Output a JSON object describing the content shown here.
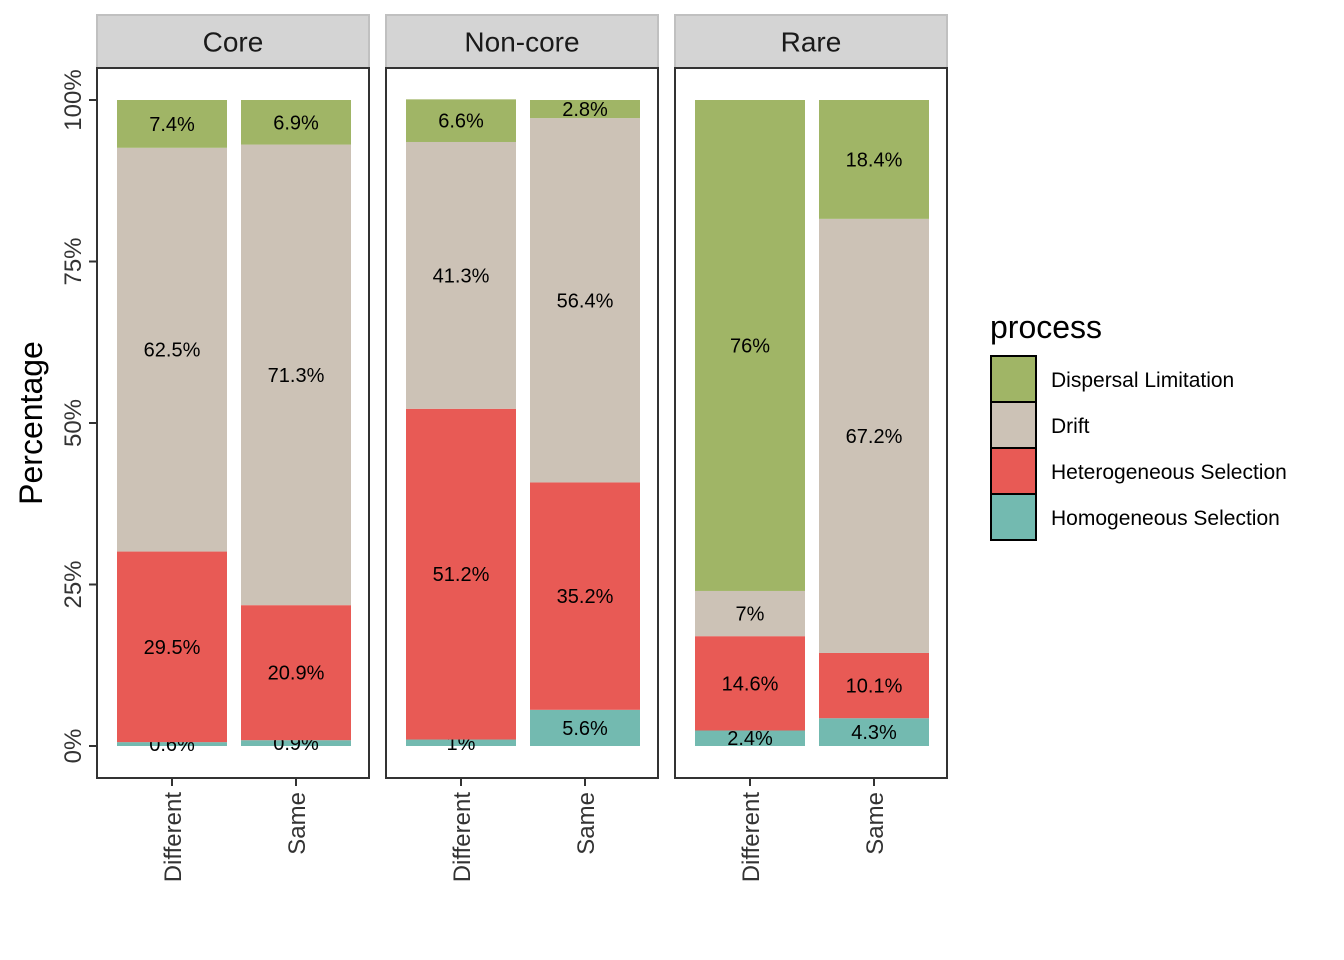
{
  "chart_data": {
    "type": "bar",
    "stacked": true,
    "ylabel": "Percentage",
    "xlabel": "",
    "ylim": [
      0,
      100
    ],
    "y_ticks": [
      "0%",
      "25%",
      "50%",
      "75%",
      "100%"
    ],
    "categories": [
      "Different",
      "Same"
    ],
    "facets": [
      {
        "name": "Core",
        "bars": [
          {
            "category": "Different",
            "values": {
              "Homogeneous Selection": 0.6,
              "Heterogeneous Selection": 29.5,
              "Drift": 62.5,
              "Dispersal Limitation": 7.4
            }
          },
          {
            "category": "Same",
            "values": {
              "Homogeneous Selection": 0.9,
              "Heterogeneous Selection": 20.9,
              "Drift": 71.3,
              "Dispersal Limitation": 6.9
            }
          }
        ]
      },
      {
        "name": "Non-core",
        "bars": [
          {
            "category": "Different",
            "values": {
              "Homogeneous Selection": 1,
              "Heterogeneous Selection": 51.2,
              "Drift": 41.3,
              "Dispersal Limitation": 6.6
            }
          },
          {
            "category": "Same",
            "values": {
              "Homogeneous Selection": 5.6,
              "Heterogeneous Selection": 35.2,
              "Drift": 56.4,
              "Dispersal Limitation": 2.8
            }
          }
        ]
      },
      {
        "name": "Rare",
        "bars": [
          {
            "category": "Different",
            "values": {
              "Homogeneous Selection": 2.4,
              "Heterogeneous Selection": 14.6,
              "Drift": 7,
              "Dispersal Limitation": 76
            }
          },
          {
            "category": "Same",
            "values": {
              "Homogeneous Selection": 4.3,
              "Heterogeneous Selection": 10.1,
              "Drift": 67.2,
              "Dispersal Limitation": 18.4
            }
          }
        ]
      }
    ],
    "stack_order": [
      "Homogeneous Selection",
      "Heterogeneous Selection",
      "Drift",
      "Dispersal Limitation"
    ],
    "legend": {
      "title": "process",
      "position": "right",
      "entries": [
        {
          "name": "Dispersal Limitation",
          "color": "#A0B566"
        },
        {
          "name": "Drift",
          "color": "#CCC2B6"
        },
        {
          "name": "Heterogeneous Selection",
          "color": "#E85A55"
        },
        {
          "name": "Homogeneous Selection",
          "color": "#73BAB0"
        }
      ]
    },
    "grid": false
  }
}
